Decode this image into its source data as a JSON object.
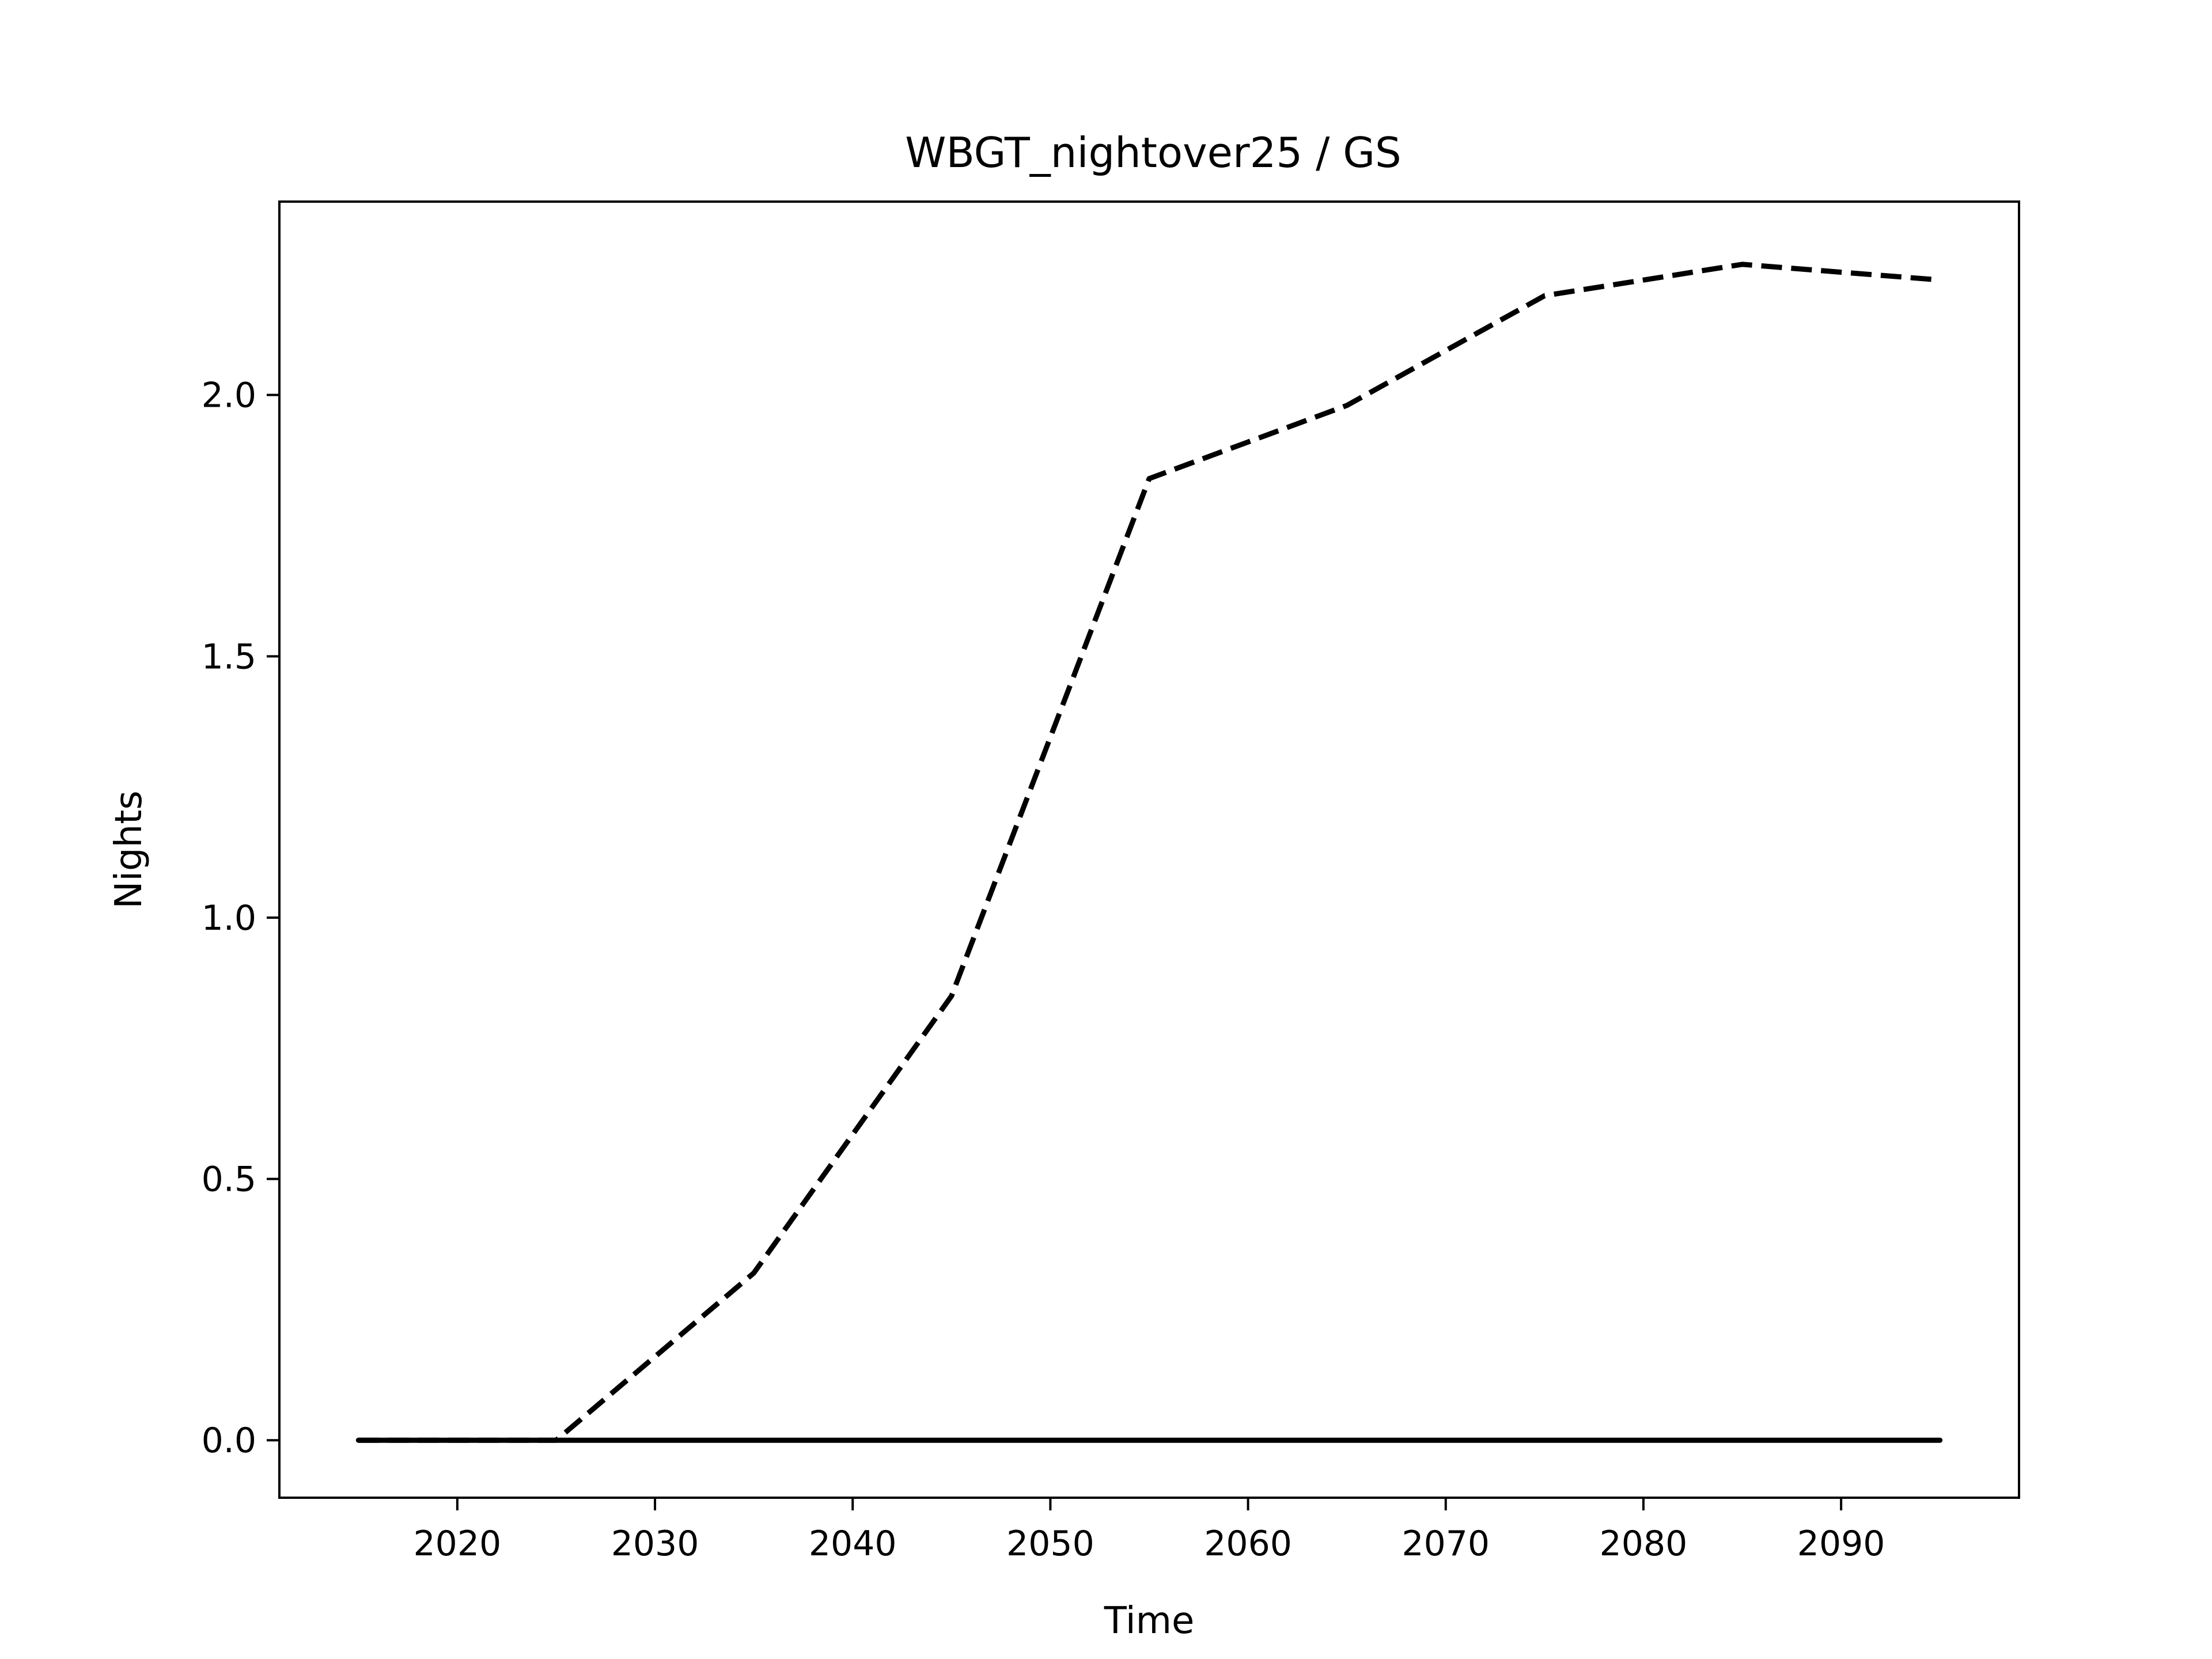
{
  "chart_data": {
    "type": "line",
    "title": "WBGT_nightover25 / GS",
    "xlabel": "Time",
    "ylabel": "Nights",
    "xlim": [
      2011,
      2099
    ],
    "ylim": [
      -0.11,
      2.37
    ],
    "xticks": [
      2020,
      2030,
      2040,
      2050,
      2060,
      2070,
      2080,
      2090
    ],
    "xtick_labels": [
      "2020",
      "2030",
      "2040",
      "2050",
      "2060",
      "2070",
      "2080",
      "2090"
    ],
    "yticks": [
      0.0,
      0.5,
      1.0,
      1.5,
      2.0
    ],
    "ytick_labels": [
      "0.0",
      "0.5",
      "1.0",
      "1.5",
      "2.0"
    ],
    "grid": false,
    "legend": "none",
    "series": [
      {
        "style": "dashed",
        "color": "#000000",
        "x": [
          2015,
          2025,
          2035,
          2045,
          2055,
          2065,
          2075,
          2085,
          2095
        ],
        "y": [
          0.0,
          0.0,
          0.32,
          0.85,
          1.84,
          1.98,
          2.19,
          2.25,
          2.22
        ]
      },
      {
        "style": "solid",
        "color": "#000000",
        "x": [
          2015,
          2025,
          2035,
          2045,
          2055,
          2065,
          2075,
          2085,
          2095
        ],
        "y": [
          0.0,
          0.0,
          0.0,
          0.0,
          0.0,
          0.0,
          0.0,
          0.0,
          0.0
        ]
      }
    ]
  }
}
